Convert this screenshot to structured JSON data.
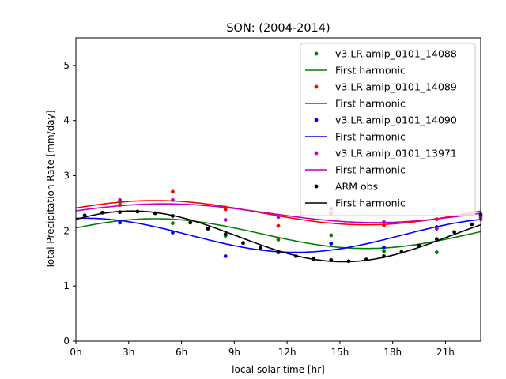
{
  "chart_data": {
    "type": "scatter",
    "title": "SON: (2004-2014)",
    "xlabel": "local solar time [hr]",
    "ylabel": "Total Precipitation Rate [mm/day]",
    "xlim": [
      0,
      23
    ],
    "ylim": [
      0,
      5.5
    ],
    "xticks": [
      0,
      3,
      6,
      9,
      12,
      15,
      18,
      21
    ],
    "xticklabels": [
      "0h",
      "3h",
      "6h",
      "9h",
      "12h",
      "15h",
      "18h",
      "21h"
    ],
    "yticks": [
      0,
      1,
      2,
      3,
      4,
      5
    ],
    "yticklabels": [
      "0",
      "1",
      "2",
      "3",
      "4",
      "5"
    ],
    "grid": false,
    "legend_position": "top-right",
    "series": [
      {
        "name": "v3.LR.amip_0101_14088",
        "fit_name": "First harmonic",
        "color": "#008000",
        "x": [
          2.5,
          5.5,
          8.5,
          11.5,
          14.5,
          17.5,
          20.5,
          23.0
        ],
        "y": [
          2.52,
          2.14,
          1.91,
          1.84,
          1.92,
          1.63,
          1.61,
          2.25
        ],
        "harmonic": {
          "mean": 1.95,
          "amplitude": 0.27,
          "phase_hour": 4.5
        }
      },
      {
        "name": "v3.LR.amip_0101_14089",
        "fit_name": "First harmonic",
        "color": "#ff0000",
        "x": [
          2.5,
          5.5,
          8.5,
          11.5,
          14.5,
          17.5,
          20.5,
          23.0
        ],
        "y": [
          2.47,
          2.71,
          2.39,
          2.09,
          2.32,
          2.1,
          2.21,
          2.28
        ],
        "harmonic": {
          "mean": 2.33,
          "amplitude": 0.22,
          "phase_hour": 4.5
        }
      },
      {
        "name": "v3.LR.amip_0101_14090",
        "fit_name": "First harmonic",
        "color": "#0000ff",
        "x": [
          2.5,
          5.5,
          8.5,
          11.5,
          14.5,
          17.5,
          20.5,
          23.0
        ],
        "y": [
          2.15,
          1.97,
          1.54,
          1.61,
          1.77,
          1.7,
          2.07,
          2.3
        ],
        "harmonic": {
          "mean": 1.92,
          "amplitude": 0.31,
          "phase_hour": 0.5
        }
      },
      {
        "name": "v3.LR.amip_0101_13971",
        "fit_name": "First harmonic",
        "color": "#bf00bf",
        "x": [
          2.5,
          5.5,
          8.5,
          11.5,
          14.5,
          17.5,
          20.5,
          23.0
        ],
        "y": [
          2.56,
          2.56,
          2.2,
          2.25,
          2.4,
          2.16,
          2.04,
          2.21
        ],
        "harmonic": {
          "mean": 2.32,
          "amplitude": 0.17,
          "phase_hour": 5.0
        }
      },
      {
        "name": "ARM obs",
        "fit_name": "First harmonic",
        "color": "#000000",
        "x": [
          0.5,
          1.5,
          2.5,
          3.5,
          4.5,
          5.5,
          6.5,
          7.5,
          8.5,
          9.5,
          10.5,
          11.5,
          12.5,
          13.5,
          14.5,
          15.5,
          16.5,
          17.5,
          18.5,
          19.5,
          20.5,
          21.5,
          22.5
        ],
        "y": [
          2.28,
          2.33,
          2.34,
          2.35,
          2.32,
          2.27,
          2.15,
          2.04,
          1.94,
          1.78,
          1.69,
          1.61,
          1.54,
          1.49,
          1.47,
          1.45,
          1.48,
          1.54,
          1.62,
          1.73,
          1.85,
          1.98,
          2.12
        ],
        "harmonic": {
          "mean": 1.9,
          "amplitude": 0.46,
          "phase_hour": 3.2
        }
      }
    ]
  }
}
